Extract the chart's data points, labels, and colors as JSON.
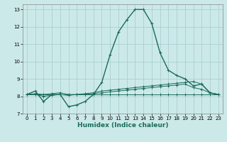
{
  "xlabel": "Humidex (Indice chaleur)",
  "ylabel": "",
  "xlim": [
    -0.5,
    23.5
  ],
  "ylim": [
    7,
    13.3
  ],
  "yticks": [
    7,
    8,
    9,
    10,
    11,
    12,
    13
  ],
  "xticks": [
    0,
    1,
    2,
    3,
    4,
    5,
    6,
    7,
    8,
    9,
    10,
    11,
    12,
    13,
    14,
    15,
    16,
    17,
    18,
    19,
    20,
    21,
    22,
    23
  ],
  "background_color": "#cce9e9",
  "grid_color": "#aacfcf",
  "line_color": "#1a6b5a",
  "lines": [
    {
      "x": [
        0,
        1,
        2,
        3,
        4,
        5,
        6,
        7,
        8,
        9,
        10,
        11,
        12,
        13,
        14,
        15,
        16,
        17,
        18,
        19,
        20,
        21,
        22,
        23
      ],
      "y": [
        8.1,
        8.3,
        7.7,
        8.1,
        8.1,
        7.4,
        7.5,
        7.7,
        8.1,
        8.8,
        10.4,
        11.7,
        12.4,
        13.0,
        13.0,
        12.2,
        10.5,
        9.5,
        9.2,
        9.0,
        8.6,
        8.7,
        8.2,
        8.1
      ]
    },
    {
      "x": [
        0,
        1,
        2,
        3,
        4,
        5,
        6,
        7,
        8,
        9,
        10,
        11,
        12,
        13,
        14,
        15,
        16,
        17,
        18,
        19,
        20,
        21,
        22,
        23
      ],
      "y": [
        8.1,
        8.15,
        8.1,
        8.15,
        8.2,
        8.1,
        8.1,
        8.15,
        8.2,
        8.3,
        8.35,
        8.4,
        8.45,
        8.5,
        8.55,
        8.6,
        8.65,
        8.7,
        8.75,
        8.8,
        8.85,
        8.7,
        8.2,
        8.1
      ]
    },
    {
      "x": [
        0,
        1,
        2,
        3,
        4,
        5,
        6,
        7,
        8,
        9,
        10,
        11,
        12,
        13,
        14,
        15,
        16,
        17,
        18,
        19,
        20,
        21,
        22,
        23
      ],
      "y": [
        8.1,
        8.1,
        8.1,
        8.1,
        8.1,
        8.1,
        8.1,
        8.1,
        8.1,
        8.1,
        8.1,
        8.1,
        8.1,
        8.1,
        8.1,
        8.1,
        8.1,
        8.1,
        8.1,
        8.1,
        8.1,
        8.1,
        8.1,
        8.1
      ]
    },
    {
      "x": [
        0,
        1,
        2,
        3,
        4,
        5,
        6,
        7,
        8,
        9,
        10,
        11,
        12,
        13,
        14,
        15,
        16,
        17,
        18,
        19,
        20,
        21,
        22,
        23
      ],
      "y": [
        8.1,
        8.1,
        8.0,
        8.05,
        8.1,
        8.05,
        8.1,
        8.1,
        8.15,
        8.2,
        8.25,
        8.3,
        8.35,
        8.4,
        8.45,
        8.5,
        8.55,
        8.6,
        8.65,
        8.7,
        8.5,
        8.4,
        8.2,
        8.1
      ]
    }
  ]
}
